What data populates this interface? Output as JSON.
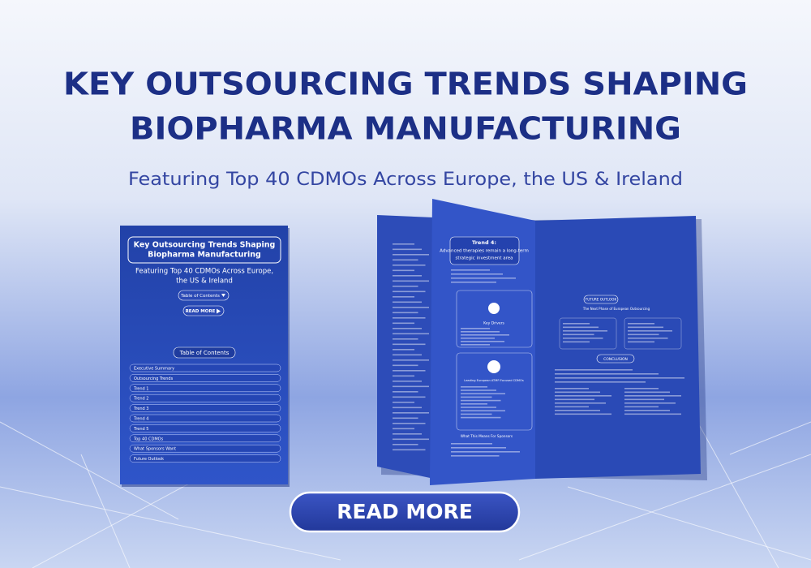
{
  "header": {
    "title_lines": [
      "KEY OUTSOURCING TRENDS SHAPING",
      "BIOPHARMA MANUFACTURING"
    ],
    "subtitle": "Featuring Top 40 CDMOs Across Europe, the US & Ireland"
  },
  "cover": {
    "title_lines": [
      "Key Outsourcing Trends Shaping",
      "Biopharma Manufacturing"
    ],
    "subtitle_lines": [
      "Featuring Top 40 CDMOs Across Europe,",
      "the US & Ireland"
    ],
    "toc_button": "Table of Contents",
    "read_more": "READ MORE",
    "toc_heading": "Table of Contents",
    "toc_items": [
      "Executive Summary",
      "Outsourcing Trends",
      "Trend 1",
      "Trend 2",
      "Trend 3",
      "Trend 4",
      "Trend 5",
      "Top 40 CDMOs",
      "What Sponsors Want",
      "Future Outlook"
    ]
  },
  "spread": {
    "trend_label": "Trend 4:",
    "trend_title_lines": [
      "Advanced therapies remain a long-term",
      "strategic investment area"
    ],
    "key_drivers": "Key Drivers",
    "leading_cdmos": "Leading European ATMP-Focused CDMOs",
    "sponsors": "What This Means For Sponsors",
    "future_outlook": "FUTURE OUTLOOK",
    "next_phase": "The Next Phase of European Outsourcing",
    "conclusion": "CONCLUSION"
  },
  "cta": {
    "label": "READ MORE"
  }
}
